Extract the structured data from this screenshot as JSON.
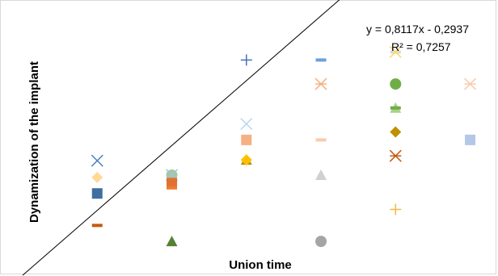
{
  "chart_data": {
    "type": "scatter",
    "title": "",
    "xlabel": "Union time",
    "ylabel": "Dynamization of the implant",
    "xlim": [
      0,
      6.2
    ],
    "ylim": [
      0,
      3.05
    ],
    "grid": false,
    "legend": "none",
    "trendline": {
      "type": "linear",
      "slope": 0.8117,
      "intercept": -0.2937,
      "equation_label": "y = 0,8117x - 0,2937",
      "r2_label": "R² = 0,7257"
    },
    "points": [
      {
        "x": 1,
        "y": 1.14,
        "marker": "x-cross",
        "color": "#4a7fb8"
      },
      {
        "x": 1,
        "y": 0.93,
        "marker": "diamond",
        "color": "#ffd996"
      },
      {
        "x": 1,
        "y": 0.73,
        "marker": "square",
        "color": "#3e6f9f"
      },
      {
        "x": 1,
        "y": 0.33,
        "marker": "dash",
        "color": "#c55a11"
      },
      {
        "x": 2,
        "y": 0.96,
        "marker": "triangle",
        "color": "#4f7f38"
      },
      {
        "x": 2,
        "y": 0.96,
        "marker": "circle",
        "color": "#a8c89b"
      },
      {
        "x": 2,
        "y": 0.96,
        "marker": "x-cross",
        "color": "#9dc3e6"
      },
      {
        "x": 2,
        "y": 0.86,
        "marker": "square",
        "color": "#e27131"
      },
      {
        "x": 2,
        "y": 0.8,
        "marker": "dash",
        "color": "#ed7d31"
      },
      {
        "x": 2,
        "y": 0.13,
        "marker": "triangle",
        "color": "#548235"
      },
      {
        "x": 3,
        "y": 2.4,
        "marker": "plus",
        "color": "#4472c4"
      },
      {
        "x": 3,
        "y": 1.6,
        "marker": "x-cross",
        "color": "#bdd7ee"
      },
      {
        "x": 3,
        "y": 1.4,
        "marker": "square",
        "color": "#f4b183"
      },
      {
        "x": 3,
        "y": 1.15,
        "marker": "triangle",
        "color": "#bf9000"
      },
      {
        "x": 3,
        "y": 1.15,
        "marker": "diamond",
        "color": "#ffc000"
      },
      {
        "x": 4,
        "y": 2.4,
        "marker": "dash",
        "color": "#6f9fd8"
      },
      {
        "x": 4,
        "y": 2.1,
        "marker": "asterisk",
        "color": "#f4b183"
      },
      {
        "x": 4,
        "y": 1.4,
        "marker": "dash",
        "color": "#f8cbad"
      },
      {
        "x": 4,
        "y": 0.96,
        "marker": "triangle",
        "color": "#d0d0d0"
      },
      {
        "x": 4,
        "y": 0.13,
        "marker": "circle",
        "color": "#a5a5a5"
      },
      {
        "x": 5,
        "y": 2.5,
        "marker": "dash",
        "color": "#d9d9d9"
      },
      {
        "x": 5,
        "y": 2.5,
        "marker": "x-cross",
        "color": "#ffd966"
      },
      {
        "x": 5,
        "y": 2.1,
        "marker": "circle",
        "color": "#70ad47"
      },
      {
        "x": 5,
        "y": 1.8,
        "marker": "triangle",
        "color": "#a9d18e"
      },
      {
        "x": 5,
        "y": 1.8,
        "marker": "dash",
        "color": "#70ad47"
      },
      {
        "x": 5,
        "y": 1.5,
        "marker": "diamond",
        "color": "#bf9000"
      },
      {
        "x": 5,
        "y": 1.2,
        "marker": "asterisk",
        "color": "#c55a11"
      },
      {
        "x": 5,
        "y": 0.53,
        "marker": "plus",
        "color": "#f2b84b"
      },
      {
        "x": 6,
        "y": 2.1,
        "marker": "asterisk",
        "color": "#f8cbad"
      },
      {
        "x": 6,
        "y": 1.4,
        "marker": "square",
        "color": "#b4c7e7"
      }
    ]
  }
}
